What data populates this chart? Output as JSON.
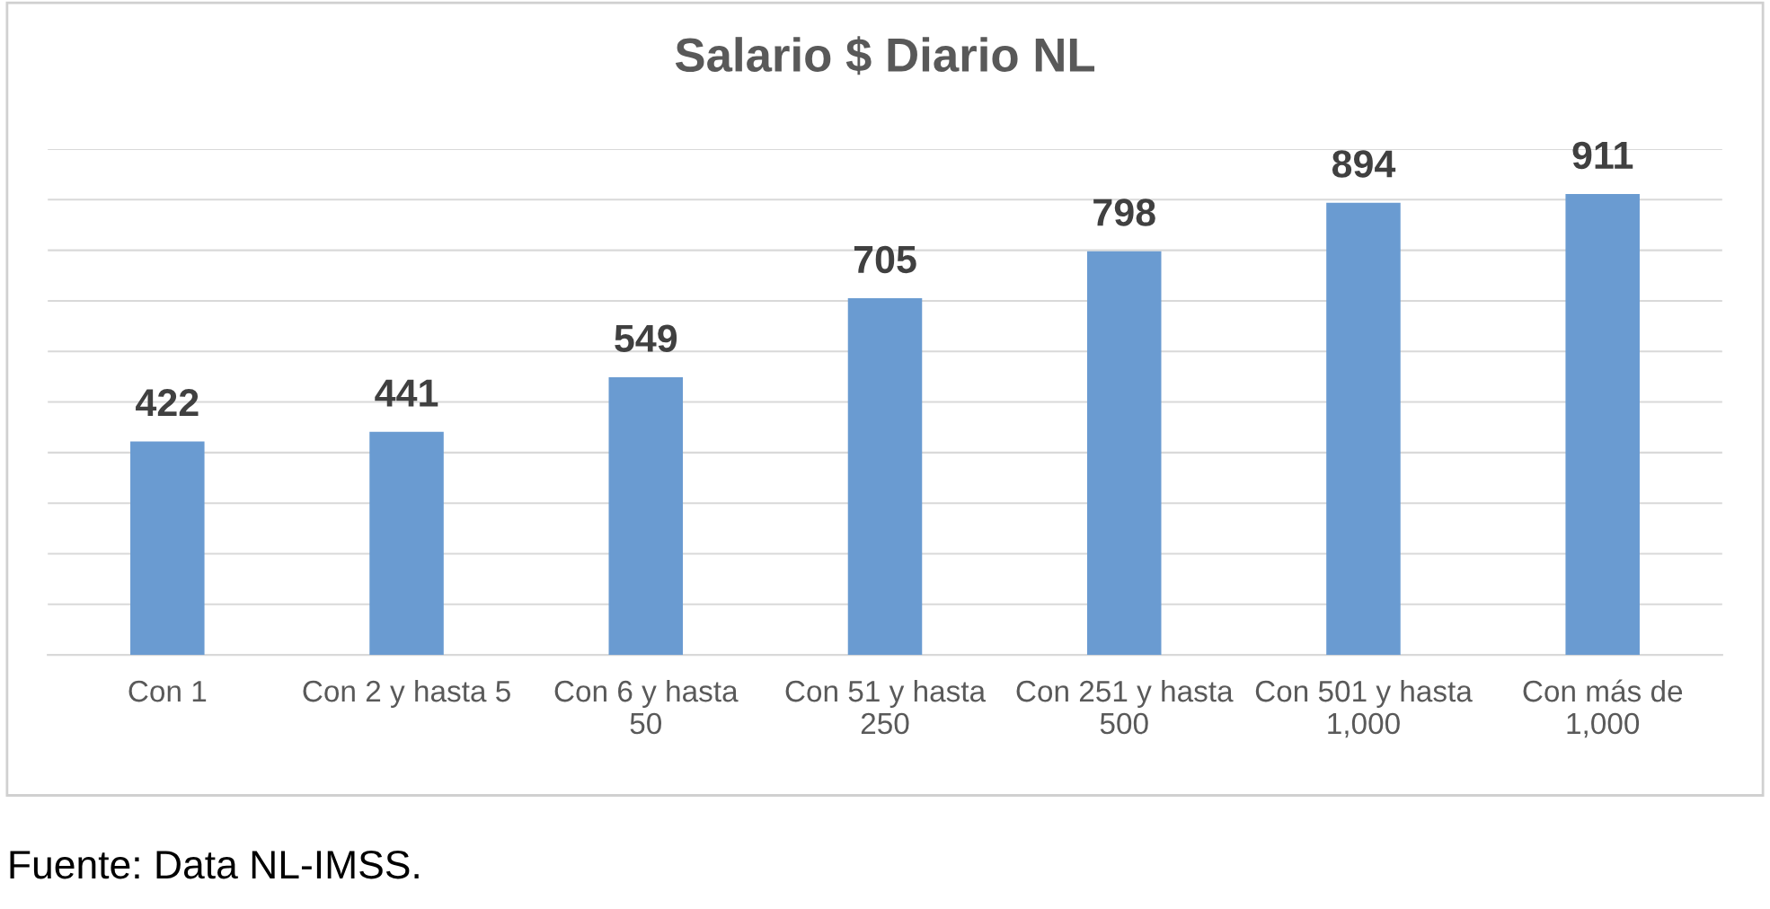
{
  "chart_data": {
    "type": "bar",
    "title": "Salario $ Diario NL",
    "categories": [
      "Con 1",
      "Con 2 y hasta 5",
      "Con 6 y hasta 50",
      "Con 51 y hasta 250",
      "Con 251 y hasta 500",
      "Con 501 y hasta 1,000",
      "Con más de 1,000"
    ],
    "values": [
      422,
      441,
      549,
      705,
      798,
      894,
      911
    ],
    "color": "#6a9bd1",
    "ylim": [
      0,
      1000
    ],
    "yticks": [
      {
        "value": 0,
        "label": null
      },
      {
        "value": 100,
        "label": null
      },
      {
        "value": 200,
        "label": null
      },
      {
        "value": 300,
        "label": null
      },
      {
        "value": 400,
        "label": null
      },
      {
        "value": 500,
        "label": null
      },
      {
        "value": 600,
        "label": null
      },
      {
        "value": 700,
        "label": null
      },
      {
        "value": 800,
        "label": null
      },
      {
        "value": 900,
        "label": null
      },
      {
        "value": 1000,
        "label": null
      }
    ],
    "grid": "y",
    "data_labels": true,
    "tick_labels": "x",
    "legend": false,
    "annotations": [
      "Fuente: Data NL-IMSS."
    ]
  }
}
